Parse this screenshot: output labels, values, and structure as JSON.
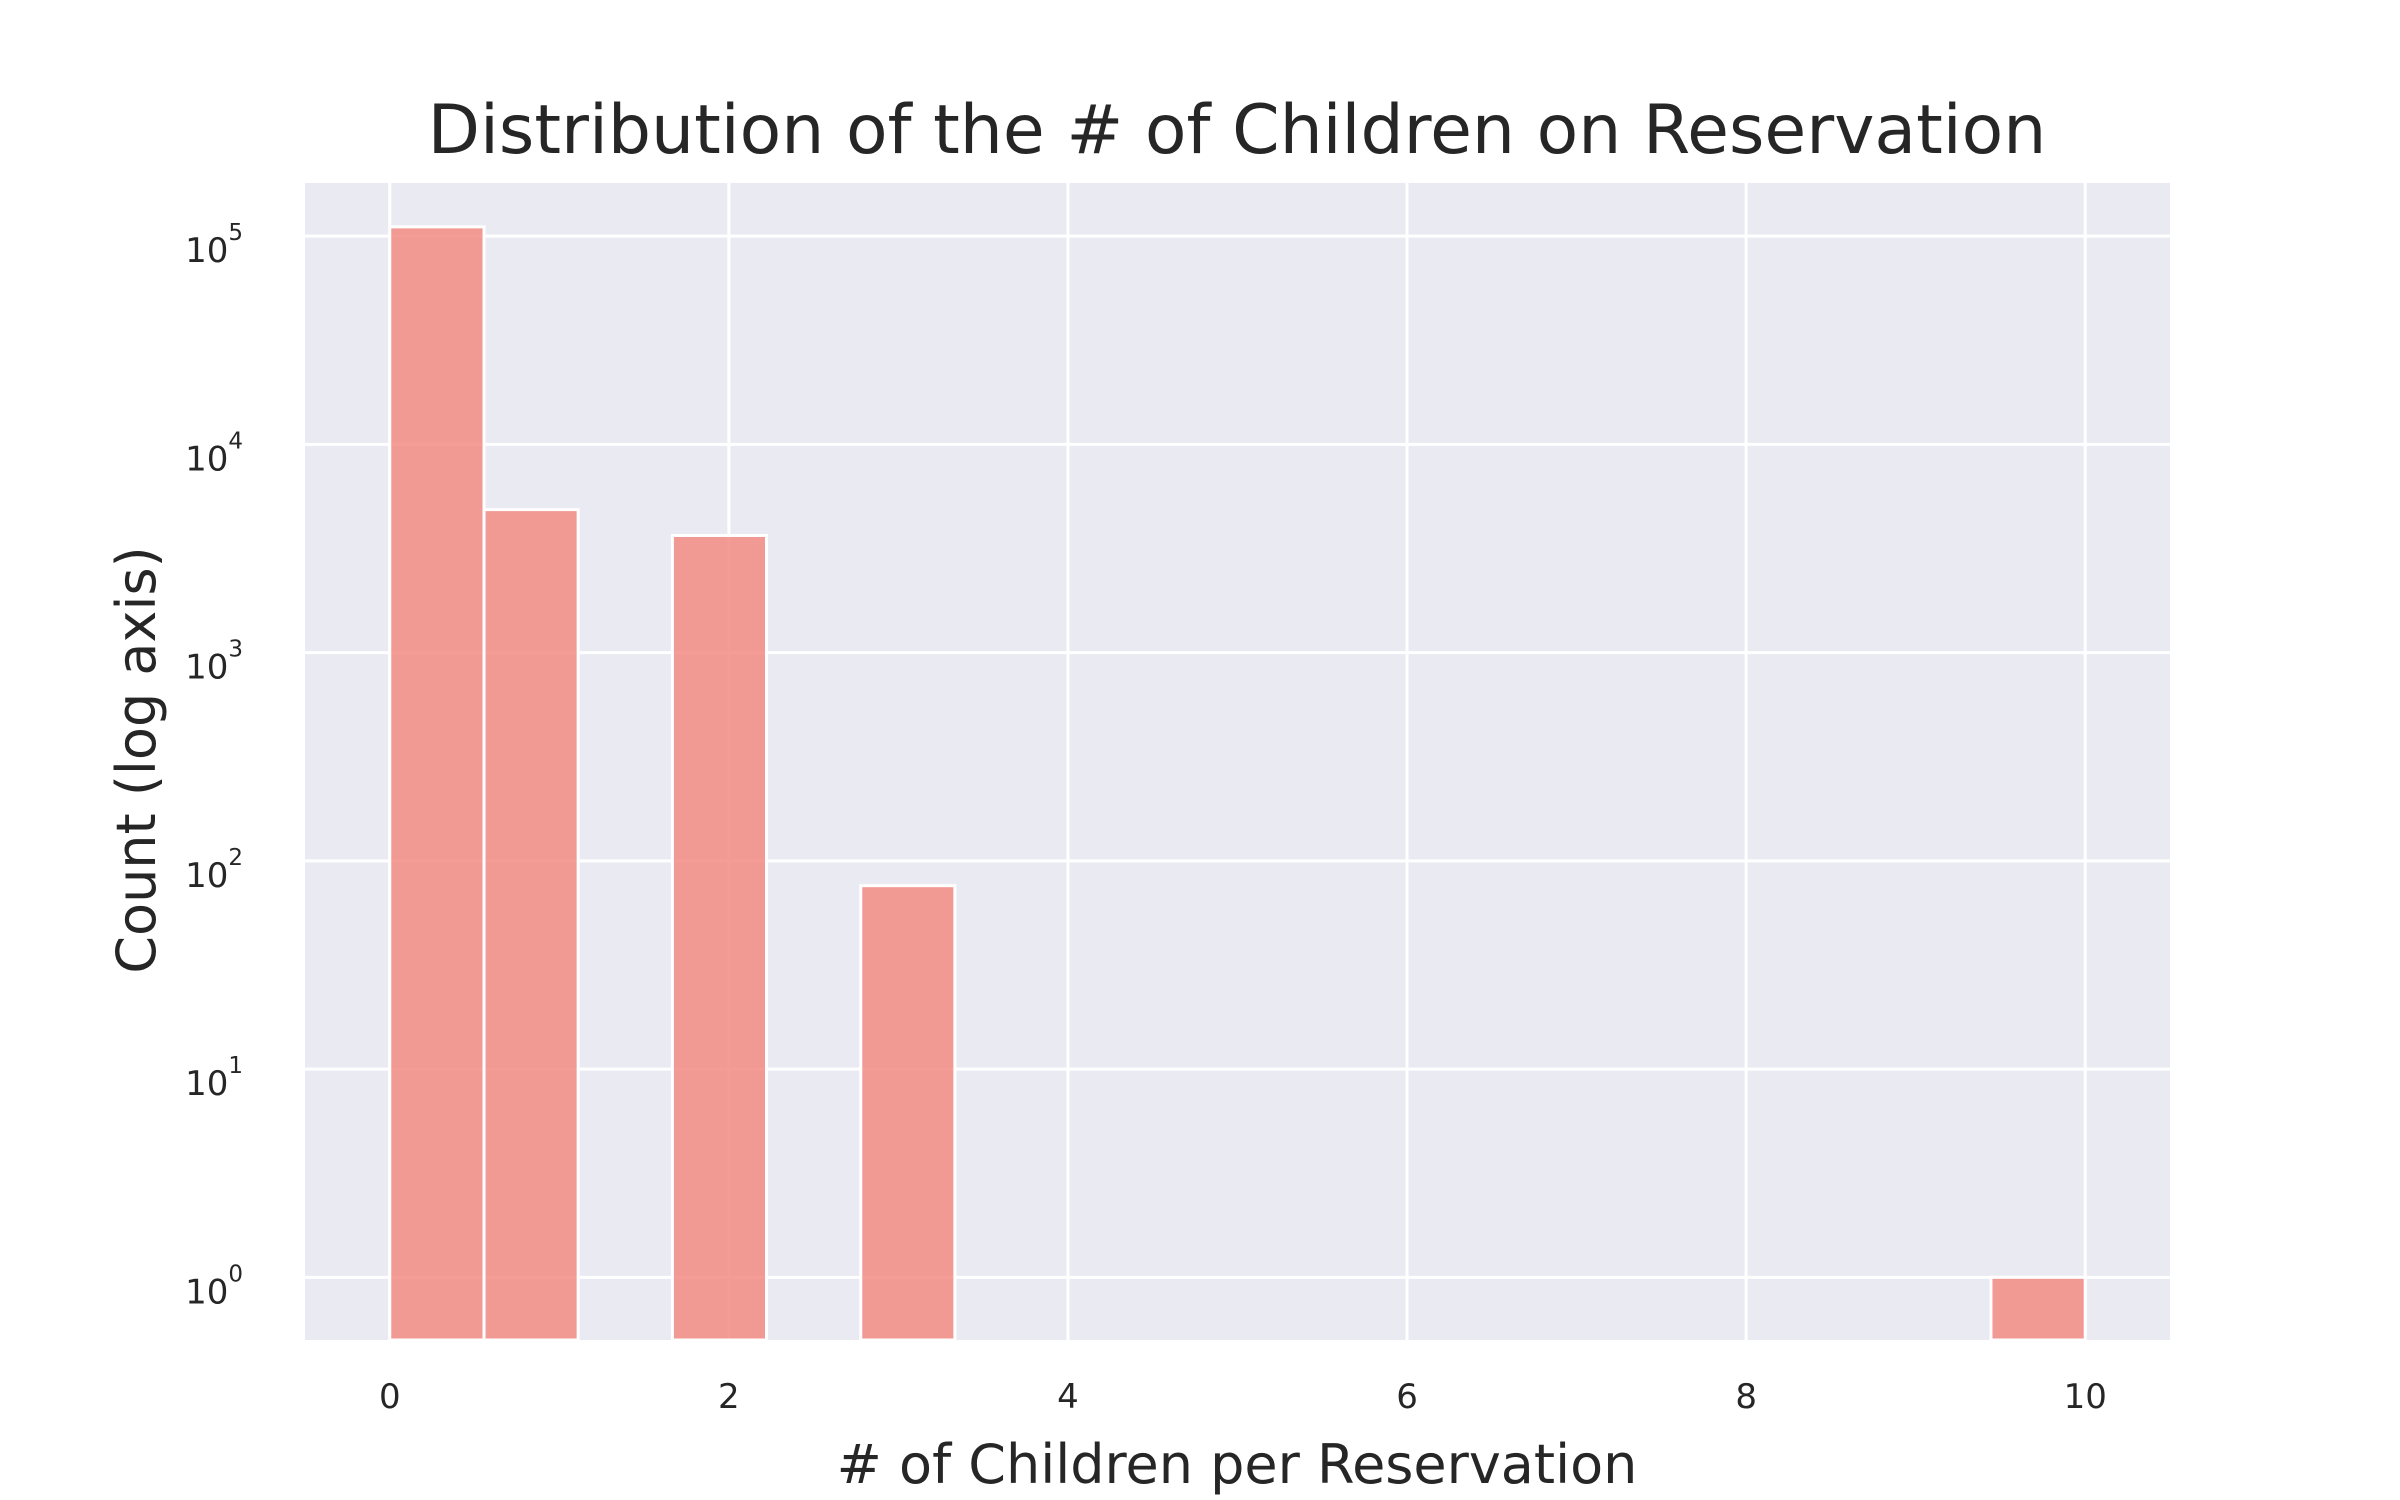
{
  "chart_data": {
    "type": "bar",
    "title": "Distribution of the # of Children on Reservation",
    "xlabel": "# of Children per Reservation",
    "ylabel": "Count (log axis)",
    "y_scale": "log",
    "xlim": [
      -0.5,
      10.5
    ],
    "ylim": [
      0.5,
      180000
    ],
    "x_ticks": [
      "0",
      "2",
      "4",
      "6",
      "8",
      "10"
    ],
    "y_ticks": [
      {
        "base": "10",
        "exp": "0"
      },
      {
        "base": "10",
        "exp": "1"
      },
      {
        "base": "10",
        "exp": "2"
      },
      {
        "base": "10",
        "exp": "3"
      },
      {
        "base": "10",
        "exp": "4"
      },
      {
        "base": "10",
        "exp": "5"
      }
    ],
    "grid": true,
    "bar_color": "#f28b82",
    "background_color": "#eaeaf2",
    "bins": [
      {
        "x0": 0.0,
        "x1": 0.556,
        "count": 110800
      },
      {
        "x0": 0.556,
        "x1": 1.111,
        "count": 4861
      },
      {
        "x0": 1.667,
        "x1": 2.222,
        "count": 3652
      },
      {
        "x0": 2.778,
        "x1": 3.333,
        "count": 76
      },
      {
        "x0": 9.444,
        "x1": 10.0,
        "count": 1
      }
    ]
  }
}
